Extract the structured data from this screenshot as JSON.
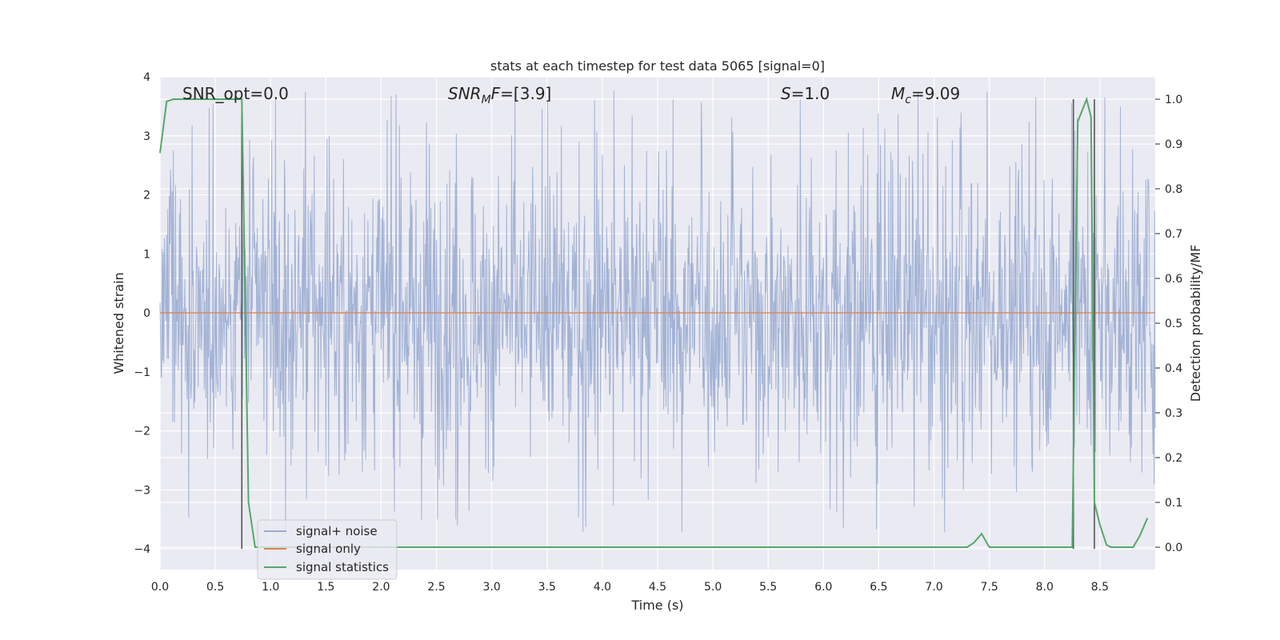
{
  "chart_data": {
    "type": "line",
    "title": "stats at each timestep for test data 5065 [signal=0]",
    "xlabel": "Time (s)",
    "ylabel": "Whitened strain",
    "y2label": "Detection probability/MF",
    "xlim": [
      0.0,
      9.0
    ],
    "ylim": [
      -4.35,
      4.0
    ],
    "y2lim": [
      -0.05,
      1.05
    ],
    "grid": true,
    "legend_position": "lower-left",
    "x_ticks": [
      "0.0",
      "0.5",
      "1.0",
      "1.5",
      "2.0",
      "2.5",
      "3.0",
      "3.5",
      "4.0",
      "4.5",
      "5.0",
      "5.5",
      "6.0",
      "6.5",
      "7.0",
      "7.5",
      "8.0",
      "8.5"
    ],
    "y_ticks": [
      "4",
      "3",
      "2",
      "1",
      "0",
      "−1",
      "−2",
      "−3",
      "−4"
    ],
    "y2_ticks": [
      "1.0",
      "0.9",
      "0.8",
      "0.7",
      "0.6",
      "0.5",
      "0.4",
      "0.3",
      "0.2",
      "0.1",
      "0.0"
    ],
    "annotations": {
      "snr_opt": "SNR_opt=0.0",
      "snr_mf_main": "SNR",
      "snr_mf_sub": "M",
      "snr_mf_rest": "F=[3.9]",
      "s_main": "S",
      "s_rest": "=1.0",
      "mc_main": "M",
      "mc_sub": "c",
      "mc_rest": "=9.09"
    },
    "series": [
      {
        "name": "signal+ noise",
        "color": "#9aacd1",
        "axis": "left",
        "description": "whitened noise, roughly ±1.7 typical band with spikes to ±3.5",
        "envelope_amplitude": 1.7,
        "peak_amplitude": 3.8
      },
      {
        "name": "signal only",
        "color": "#dd8452",
        "axis": "left",
        "value": 0.0
      },
      {
        "name": "signal statistics",
        "color": "#55a868",
        "axis": "right",
        "x": [
          0.0,
          0.06,
          0.12,
          0.2,
          0.3,
          0.4,
          0.5,
          0.6,
          0.7,
          0.74,
          0.8,
          0.86,
          0.9,
          1.0,
          2.0,
          3.0,
          4.0,
          5.0,
          6.0,
          7.0,
          7.3,
          7.36,
          7.43,
          7.5,
          7.6,
          8.0,
          8.2,
          8.25,
          8.3,
          8.38,
          8.42,
          8.45,
          8.5,
          8.56,
          8.6,
          8.7,
          8.8,
          8.86,
          8.93
        ],
        "y": [
          0.88,
          0.995,
          1.0,
          1.0,
          1.0,
          1.0,
          1.0,
          1.0,
          1.0,
          1.0,
          0.1,
          0.0,
          0.0,
          0.0,
          0.0,
          0.0,
          0.0,
          0.0,
          0.0,
          0.0,
          0.0,
          0.01,
          0.03,
          0.0,
          0.0,
          0.0,
          0.0,
          0.0,
          0.95,
          1.0,
          0.96,
          0.1,
          0.05,
          0.005,
          0.0,
          0.0,
          0.0,
          0.025,
          0.065
        ]
      }
    ],
    "vertical_markers": [
      0.74,
      8.26,
      8.45
    ],
    "marker_color": "#555555"
  }
}
